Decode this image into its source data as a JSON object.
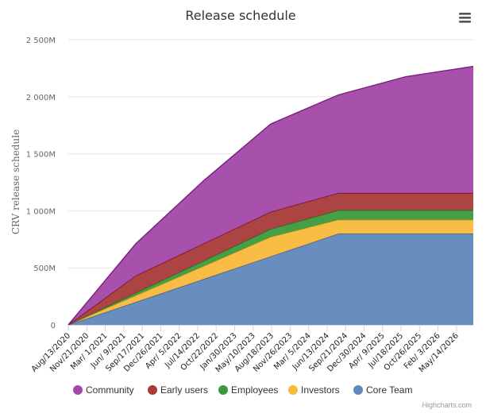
{
  "chart_data": {
    "type": "area",
    "stacked": true,
    "title": "Release schedule",
    "ylabel": "CRV release schedule",
    "xlabel": "",
    "ylim": [
      0,
      2500
    ],
    "y_unit": "M",
    "yticks": [
      {
        "value": 0,
        "label": "0"
      },
      {
        "value": 500,
        "label": "500M"
      },
      {
        "value": 1000,
        "label": "1 000M"
      },
      {
        "value": 1500,
        "label": "1 500M"
      },
      {
        "value": 2000,
        "label": "2 000M"
      },
      {
        "value": 2500,
        "label": "2 500M"
      }
    ],
    "xlim": [
      "2020-08-13",
      "2026-08-13"
    ],
    "xticks": [
      {
        "date": "2020-08-13",
        "label": "Aug/13/2020"
      },
      {
        "date": "2020-11-21",
        "label": "Nov/21/2020"
      },
      {
        "date": "2021-03-01",
        "label": "Mar/ 1/2021"
      },
      {
        "date": "2021-06-09",
        "label": "Jun/ 9/2021"
      },
      {
        "date": "2021-09-17",
        "label": "Sep/17/2021"
      },
      {
        "date": "2021-12-26",
        "label": "Dec/26/2021"
      },
      {
        "date": "2022-04-05",
        "label": "Apr/ 5/2022"
      },
      {
        "date": "2022-07-14",
        "label": "Jul/14/2022"
      },
      {
        "date": "2022-10-22",
        "label": "Oct/22/2022"
      },
      {
        "date": "2023-01-30",
        "label": "Jan/30/2023"
      },
      {
        "date": "2023-05-10",
        "label": "May/10/2023"
      },
      {
        "date": "2023-08-18",
        "label": "Aug/18/2023"
      },
      {
        "date": "2023-11-26",
        "label": "Nov/26/2023"
      },
      {
        "date": "2024-03-05",
        "label": "Mar/ 5/2024"
      },
      {
        "date": "2024-06-13",
        "label": "Jun/13/2024"
      },
      {
        "date": "2024-09-21",
        "label": "Sep/21/2024"
      },
      {
        "date": "2024-12-30",
        "label": "Dec/30/2024"
      },
      {
        "date": "2025-04-09",
        "label": "Apr/ 9/2025"
      },
      {
        "date": "2025-07-18",
        "label": "Jul/18/2025"
      },
      {
        "date": "2025-10-26",
        "label": "Oct/26/2025"
      },
      {
        "date": "2026-02-03",
        "label": "Feb/ 3/2026"
      },
      {
        "date": "2026-05-14",
        "label": "May/14/2026"
      }
    ],
    "x": [
      "2020-08-13",
      "2021-08-13",
      "2022-08-13",
      "2023-08-13",
      "2024-08-13",
      "2025-08-13",
      "2026-08-13"
    ],
    "series": [
      {
        "name": "Core Team",
        "color": "#6088bd",
        "line_color": "#3b5c8f",
        "values": [
          0,
          200,
          400,
          600,
          800,
          800,
          800
        ]
      },
      {
        "name": "Investors",
        "color": "#f9b93b",
        "line_color": "#e0a020",
        "values": [
          0,
          57,
          113,
          170,
          121,
          121,
          121
        ]
      },
      {
        "name": "Employees",
        "color": "#3c9a3c",
        "line_color": "#247024",
        "values": [
          0,
          23,
          47,
          70,
          84,
          84,
          84
        ]
      },
      {
        "name": "Early users",
        "color": "#a83a3a",
        "line_color": "#7a1010",
        "values": [
          0,
          151,
          151,
          151,
          151,
          151,
          151
        ]
      },
      {
        "name": "Community",
        "color": "#a348a8",
        "line_color": "#7a1f7f",
        "values": [
          0,
          280,
          550,
          770,
          860,
          1020,
          1110
        ]
      }
    ],
    "legend_order": [
      "Community",
      "Early users",
      "Employees",
      "Investors",
      "Core Team"
    ],
    "legend_position": "bottom",
    "grid": true
  },
  "ui": {
    "menu_icon": "hamburger-menu-icon",
    "credits": "Highcharts.com"
  }
}
